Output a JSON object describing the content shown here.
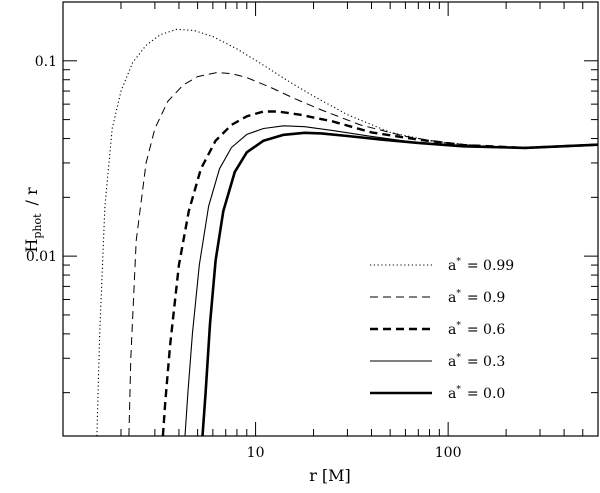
{
  "chart_data": {
    "type": "line",
    "title": "",
    "xlabel": "r  [M]",
    "ylabel_main": "H",
    "ylabel_sub": "phot",
    "ylabel_suffix": "/ r",
    "x_scale": "log",
    "y_scale": "log",
    "xlim": [
      1.0,
      600
    ],
    "ylim": [
      0.0012,
      0.2
    ],
    "x_ticks": [
      {
        "value": 10,
        "label": "10"
      },
      {
        "value": 100,
        "label": "100"
      }
    ],
    "y_ticks": [
      {
        "value": 0.01,
        "label": "0.01"
      },
      {
        "value": 0.1,
        "label": "0.1"
      }
    ],
    "grid": false,
    "legend_position": "bottom-right",
    "legend_symbol": "a",
    "legend_symbol_sup": "*",
    "legend_equals": "=",
    "series": [
      {
        "name": "0.99",
        "style": "dotted",
        "color": "#000000",
        "x": [
          1.5,
          1.55,
          1.65,
          1.8,
          2.0,
          2.3,
          2.7,
          3.2,
          3.9,
          4.8,
          6.0,
          8.0,
          11,
          15,
          20,
          30,
          50,
          80,
          150,
          300,
          600
        ],
        "y": [
          0.0012,
          0.004,
          0.018,
          0.045,
          0.07,
          0.098,
          0.12,
          0.136,
          0.145,
          0.143,
          0.133,
          0.115,
          0.095,
          0.078,
          0.066,
          0.053,
          0.043,
          0.039,
          0.0365,
          0.0358,
          0.0372
        ]
      },
      {
        "name": "0.9",
        "style": "thin-dashed",
        "color": "#000000",
        "x": [
          2.2,
          2.25,
          2.4,
          2.7,
          3.0,
          3.5,
          4.2,
          5.0,
          6.3,
          7.5,
          9.0,
          12,
          16,
          22,
          35,
          60,
          100,
          200,
          400,
          600
        ],
        "y": [
          0.0012,
          0.003,
          0.012,
          0.03,
          0.045,
          0.062,
          0.075,
          0.083,
          0.087,
          0.086,
          0.082,
          0.073,
          0.064,
          0.056,
          0.047,
          0.041,
          0.0378,
          0.036,
          0.0362,
          0.0372
        ]
      },
      {
        "name": "0.6",
        "style": "thick-dashed",
        "color": "#000000",
        "x": [
          3.3,
          3.4,
          3.6,
          4.0,
          4.5,
          5.2,
          6.2,
          7.5,
          9.0,
          11,
          13,
          17,
          25,
          40,
          70,
          120,
          250,
          600
        ],
        "y": [
          0.0012,
          0.0018,
          0.0035,
          0.009,
          0.017,
          0.028,
          0.039,
          0.047,
          0.052,
          0.055,
          0.055,
          0.053,
          0.049,
          0.043,
          0.0395,
          0.037,
          0.0358,
          0.0372
        ]
      },
      {
        "name": "0.3",
        "style": "thin-solid",
        "color": "#000000",
        "x": [
          4.3,
          4.45,
          4.7,
          5.1,
          5.7,
          6.5,
          7.5,
          9.0,
          11,
          14,
          18,
          25,
          40,
          70,
          120,
          250,
          600
        ],
        "y": [
          0.0012,
          0.002,
          0.004,
          0.009,
          0.018,
          0.028,
          0.036,
          0.042,
          0.045,
          0.0465,
          0.046,
          0.044,
          0.041,
          0.038,
          0.0365,
          0.0358,
          0.0372
        ]
      },
      {
        "name": "0.0",
        "style": "thick-solid",
        "color": "#000000",
        "x": [
          5.3,
          5.5,
          5.8,
          6.2,
          6.8,
          7.8,
          9.0,
          11,
          14,
          18,
          22,
          30,
          45,
          70,
          120,
          250,
          600
        ],
        "y": [
          0.0012,
          0.002,
          0.0045,
          0.0095,
          0.017,
          0.027,
          0.034,
          0.039,
          0.0418,
          0.0428,
          0.0425,
          0.0412,
          0.0395,
          0.038,
          0.0365,
          0.0358,
          0.0372
        ]
      }
    ]
  }
}
